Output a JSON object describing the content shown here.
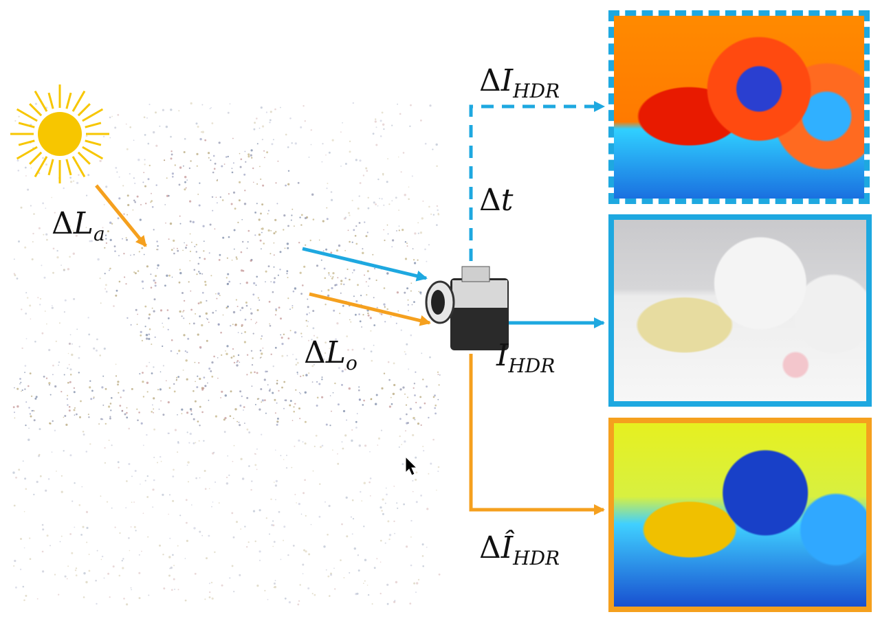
{
  "labels": {
    "delta_symbol": "Δ",
    "delta_i_hdr": {
      "main": "I",
      "sub": "HDR"
    },
    "delta_t": {
      "main": "t"
    },
    "delta_l_a": {
      "main": "L",
      "sub": "a"
    },
    "delta_l_o": {
      "main": "L",
      "sub": "o"
    },
    "i_hdr": {
      "main": "I",
      "sub": "HDR"
    },
    "delta_i_hat_hdr": {
      "main": "Î",
      "sub": "HDR"
    }
  },
  "colors": {
    "blue": "#1ea8e0",
    "orange": "#f5a01e",
    "sun": "#f7c600"
  },
  "panels": [
    {
      "name": "delta-i-hdr-heatmap",
      "border": "dashed",
      "color": "#1ea8e0"
    },
    {
      "name": "i-hdr-photo",
      "border": "solid",
      "color": "#1ea8e0"
    },
    {
      "name": "delta-i-hat-hdr-heatmap",
      "border": "solid",
      "color": "#f5a01e"
    }
  ],
  "icons": [
    "sun-icon",
    "camera-icon",
    "mouse-cursor-icon"
  ]
}
